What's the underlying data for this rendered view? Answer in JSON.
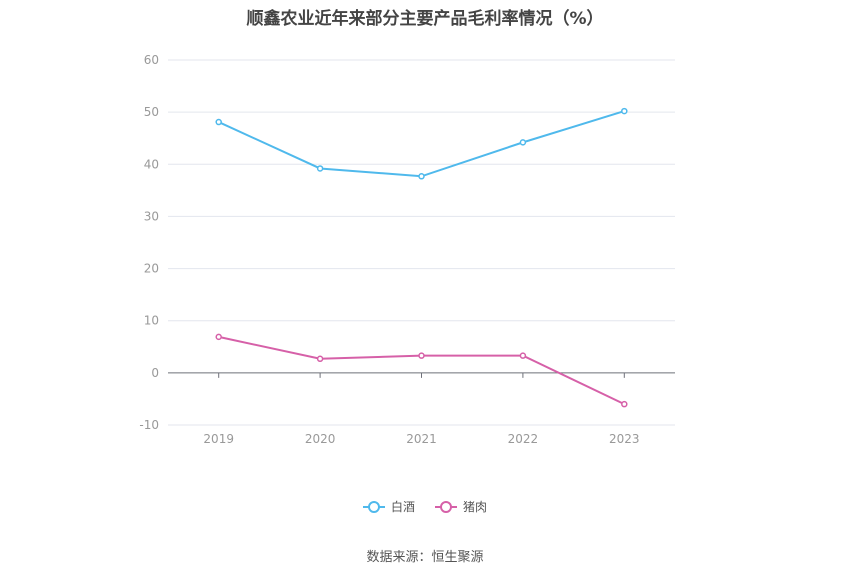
{
  "chart_data": {
    "type": "line",
    "title": "顺鑫农业近年来部分主要产品毛利率情况（%）",
    "categories": [
      "2019",
      "2020",
      "2021",
      "2022",
      "2023"
    ],
    "ylim": [
      -10,
      60
    ],
    "yticks": [
      -10,
      0,
      10,
      20,
      30,
      40,
      50,
      60
    ],
    "grid": true,
    "legend_position": "bottom",
    "series": [
      {
        "name": "白酒",
        "color": "#4FB9EC",
        "values": [
          48.1,
          39.2,
          37.7,
          44.2,
          50.2
        ]
      },
      {
        "name": "猪肉",
        "color": "#D660A8",
        "values": [
          6.9,
          2.7,
          3.3,
          3.3,
          -6.0
        ]
      }
    ]
  },
  "footer": {
    "source": "数据来源：恒生聚源"
  }
}
